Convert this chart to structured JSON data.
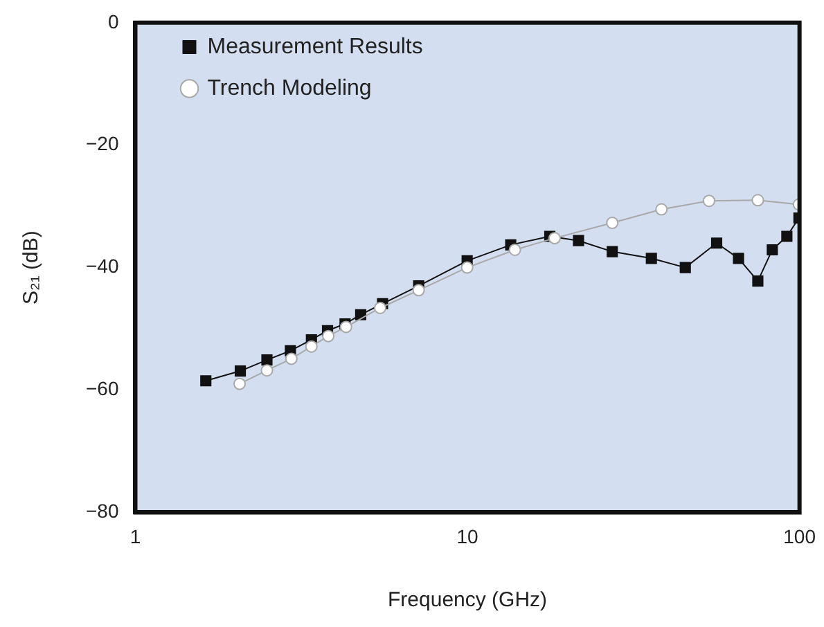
{
  "chart_data": {
    "type": "line",
    "xlabel": "Frequency (GHz)",
    "ylabel": "S₂₁ (dB)",
    "log": "x",
    "xlim": [
      1,
      100
    ],
    "xticks": [
      1,
      10,
      100
    ],
    "ylim": [
      -80,
      0
    ],
    "yticks": [
      {
        "value": -80,
        "label": "−80"
      },
      {
        "value": -60,
        "label": "−60"
      },
      {
        "value": -40,
        "label": "−40"
      },
      {
        "value": -20,
        "label": "−20"
      },
      0
    ],
    "grid": false,
    "legend": "top left",
    "line_style": "solid",
    "series": [
      {
        "name": "Measurement Results",
        "color": "#111111",
        "marker": "square",
        "x": [
          1.63,
          2.07,
          2.49,
          2.93,
          3.39,
          3.79,
          4.28,
          4.77,
          5.55,
          7.13,
          9.98,
          13.5,
          17.7,
          21.6,
          27.3,
          35.8,
          45.3,
          56.3,
          65.5,
          74.9,
          82.8,
          91.6,
          99.6
        ],
        "values": [
          -58.5,
          -56.9,
          -55.1,
          -53.6,
          -51.8,
          -50.3,
          -49.2,
          -47.7,
          -45.9,
          -43.0,
          -38.9,
          -36.3,
          -34.9,
          -35.6,
          -37.4,
          -38.5,
          -40.0,
          -36.0,
          -38.5,
          -42.2,
          -37.1,
          -34.9,
          -31.9
        ]
      },
      {
        "name": "Trench Modeling",
        "color": "#a8a8a8",
        "marker": "circle",
        "x": [
          2.06,
          2.49,
          2.95,
          3.39,
          3.81,
          4.31,
          5.46,
          7.13,
          9.98,
          13.9,
          18.3,
          27.3,
          38.4,
          53.4,
          74.9,
          99.6
        ],
        "values": [
          -59.0,
          -56.8,
          -54.9,
          -52.9,
          -51.2,
          -49.7,
          -46.6,
          -43.7,
          -40.0,
          -37.1,
          -35.2,
          -32.7,
          -30.5,
          -29.1,
          -29.0,
          -29.7
        ]
      }
    ]
  }
}
